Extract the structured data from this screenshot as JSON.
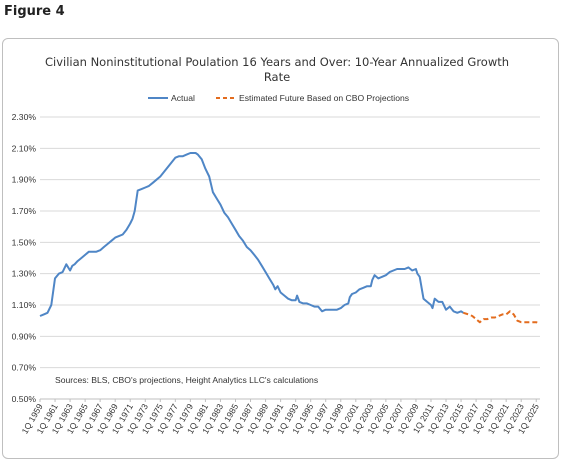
{
  "figure_label": "Figure 4",
  "chart_data": {
    "type": "line",
    "title_line1": "Civilian Noninstitutional Poulation 16 Years and Over: 10-Year Annualized Growth",
    "title_line2": "Rate",
    "legend_position": "top",
    "grid": true,
    "colors": {
      "actual": "#4f86c6",
      "estimated": "#e36c1e"
    },
    "ylim": [
      0.5,
      2.3
    ],
    "y_ticks": [
      "2.30%",
      "2.10%",
      "1.90%",
      "1.70%",
      "1.50%",
      "1.30%",
      "1.10%",
      "0.90%",
      "0.70%",
      "0.50%"
    ],
    "y_tick_values": [
      2.3,
      2.1,
      1.9,
      1.7,
      1.5,
      1.3,
      1.1,
      0.9,
      0.7,
      0.5
    ],
    "x_ticks": [
      "1Q 1959",
      "1Q 1961",
      "1Q 1963",
      "1Q 1965",
      "1Q 1967",
      "1Q 1969",
      "1Q 1971",
      "1Q 1973",
      "1Q 1975",
      "1Q 1977",
      "1Q 1979",
      "1Q 1981",
      "1Q 1983",
      "1Q 1985",
      "1Q 1987",
      "1Q 1989",
      "1Q 1991",
      "1Q 1993",
      "1Q 1995",
      "1Q 1997",
      "1Q 1999",
      "1Q 2001",
      "1Q 2003",
      "1Q 2005",
      "1Q 2007",
      "1Q 2009",
      "1Q 2011",
      "1Q 2013",
      "1Q 2015",
      "1Q 2017",
      "1Q 2019",
      "1Q 2021",
      "1Q 2023",
      "1Q 2025"
    ],
    "x_tick_years": [
      1959,
      1961,
      1963,
      1965,
      1967,
      1969,
      1971,
      1973,
      1975,
      1977,
      1979,
      1981,
      1983,
      1985,
      1987,
      1989,
      1991,
      1993,
      1995,
      1997,
      1999,
      2001,
      2003,
      2005,
      2007,
      2009,
      2011,
      2013,
      2015,
      2017,
      2019,
      2021,
      2023,
      2025
    ],
    "xlim": [
      1959,
      2025.5
    ],
    "note": "Sources: BLS, CBO's projections, Height Analytics LLC's calculations",
    "series": [
      {
        "name": "Actual",
        "style": "solid",
        "x": [
          1959,
          1959.5,
          1960,
          1960.5,
          1961,
          1961.5,
          1962,
          1962.5,
          1963,
          1963.3,
          1963.6,
          1964,
          1964.5,
          1965,
          1965.5,
          1966,
          1966.5,
          1967,
          1967.5,
          1968,
          1968.5,
          1969,
          1969.5,
          1970,
          1970.5,
          1971,
          1971.3,
          1971.6,
          1972,
          1972.5,
          1973,
          1973.5,
          1974,
          1974.5,
          1975,
          1975.5,
          1976,
          1976.5,
          1977,
          1977.5,
          1978,
          1978.5,
          1979,
          1979.3,
          1979.7,
          1980,
          1980.5,
          1981,
          1981.5,
          1982,
          1982.5,
          1983,
          1983.5,
          1984,
          1984.5,
          1985,
          1985.5,
          1986,
          1986.5,
          1987,
          1987.5,
          1988,
          1988.5,
          1989,
          1989.5,
          1990,
          1990.3,
          1990.6,
          1991,
          1991.5,
          1992,
          1992.5,
          1993,
          1993.2,
          1993.5,
          1994,
          1994.5,
          1995,
          1995.5,
          1996,
          1996.5,
          1997,
          1997.5,
          1998,
          1998.5,
          1999,
          1999.5,
          2000,
          2000.2,
          2000.5,
          2001,
          2001.5,
          2002,
          2002.5,
          2003,
          2003.2,
          2003.5,
          2004,
          2004.5,
          2005,
          2005.5,
          2006,
          2006.5,
          2007,
          2007.5,
          2008,
          2008.5,
          2009,
          2009.2,
          2009.5,
          2010,
          2010.5,
          2011,
          2011.2,
          2011.5,
          2012,
          2012.5,
          2013,
          2013.5,
          2014,
          2014.5,
          2015,
          2015.3
        ],
        "values": [
          1.03,
          1.04,
          1.05,
          1.1,
          1.27,
          1.3,
          1.31,
          1.36,
          1.32,
          1.35,
          1.36,
          1.38,
          1.4,
          1.42,
          1.44,
          1.44,
          1.44,
          1.45,
          1.47,
          1.49,
          1.51,
          1.53,
          1.54,
          1.55,
          1.58,
          1.62,
          1.65,
          1.7,
          1.83,
          1.84,
          1.85,
          1.86,
          1.88,
          1.9,
          1.92,
          1.95,
          1.98,
          2.01,
          2.04,
          2.05,
          2.05,
          2.06,
          2.07,
          2.07,
          2.07,
          2.06,
          2.03,
          1.97,
          1.92,
          1.82,
          1.78,
          1.74,
          1.69,
          1.66,
          1.62,
          1.58,
          1.54,
          1.51,
          1.47,
          1.45,
          1.42,
          1.39,
          1.35,
          1.31,
          1.27,
          1.23,
          1.2,
          1.22,
          1.18,
          1.16,
          1.14,
          1.13,
          1.13,
          1.16,
          1.12,
          1.11,
          1.11,
          1.1,
          1.09,
          1.09,
          1.06,
          1.07,
          1.07,
          1.07,
          1.07,
          1.08,
          1.1,
          1.11,
          1.15,
          1.17,
          1.18,
          1.2,
          1.21,
          1.22,
          1.22,
          1.26,
          1.29,
          1.27,
          1.28,
          1.29,
          1.31,
          1.32,
          1.33,
          1.33,
          1.33,
          1.34,
          1.32,
          1.33,
          1.3,
          1.28,
          1.14,
          1.12,
          1.1,
          1.08,
          1.14,
          1.12,
          1.12,
          1.07,
          1.09,
          1.06,
          1.05,
          1.06,
          1.05
        ]
      },
      {
        "name": "Estimated Future Based on CBO Projections",
        "style": "dashed",
        "x": [
          2015.3,
          2016,
          2016.5,
          2017,
          2017.5,
          2018,
          2018.5,
          2019,
          2019.5,
          2020,
          2020.5,
          2021,
          2021.5,
          2022,
          2022.5,
          2023,
          2023.5,
          2024,
          2024.5,
          2025,
          2025.5
        ],
        "values": [
          1.05,
          1.04,
          1.03,
          1.01,
          0.99,
          1.01,
          1.01,
          1.02,
          1.02,
          1.03,
          1.04,
          1.04,
          1.06,
          1.04,
          1.0,
          0.99,
          0.99,
          0.99,
          0.99,
          0.99,
          0.98
        ]
      }
    ]
  }
}
